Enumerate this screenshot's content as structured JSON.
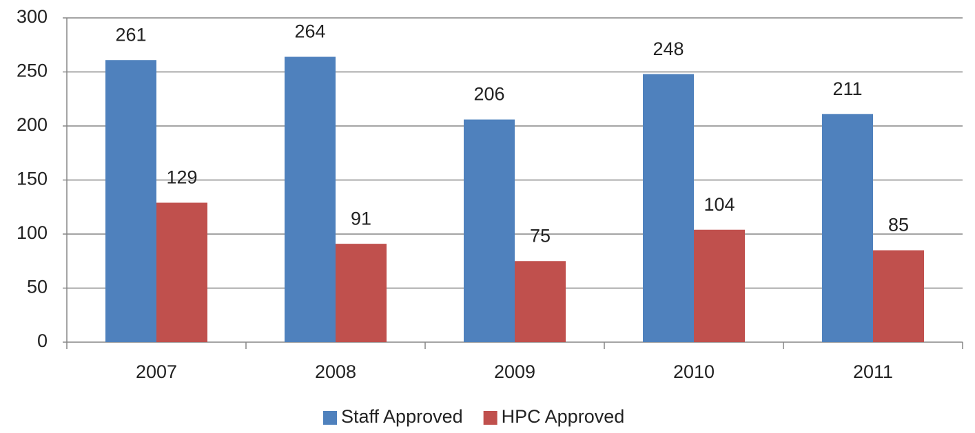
{
  "chart_data": {
    "type": "bar",
    "categories": [
      "2007",
      "2008",
      "2009",
      "2010",
      "2011"
    ],
    "series": [
      {
        "name": "Staff Approved",
        "color": "#4f81bd",
        "values": [
          261,
          264,
          206,
          248,
          211
        ]
      },
      {
        "name": "HPC Approved",
        "color": "#c0504d",
        "values": [
          129,
          91,
          75,
          104,
          85
        ]
      }
    ],
    "ylim": [
      0,
      300
    ],
    "yticks": [
      0,
      50,
      100,
      150,
      200,
      250,
      300
    ],
    "grid": true,
    "legend": "bottom"
  }
}
